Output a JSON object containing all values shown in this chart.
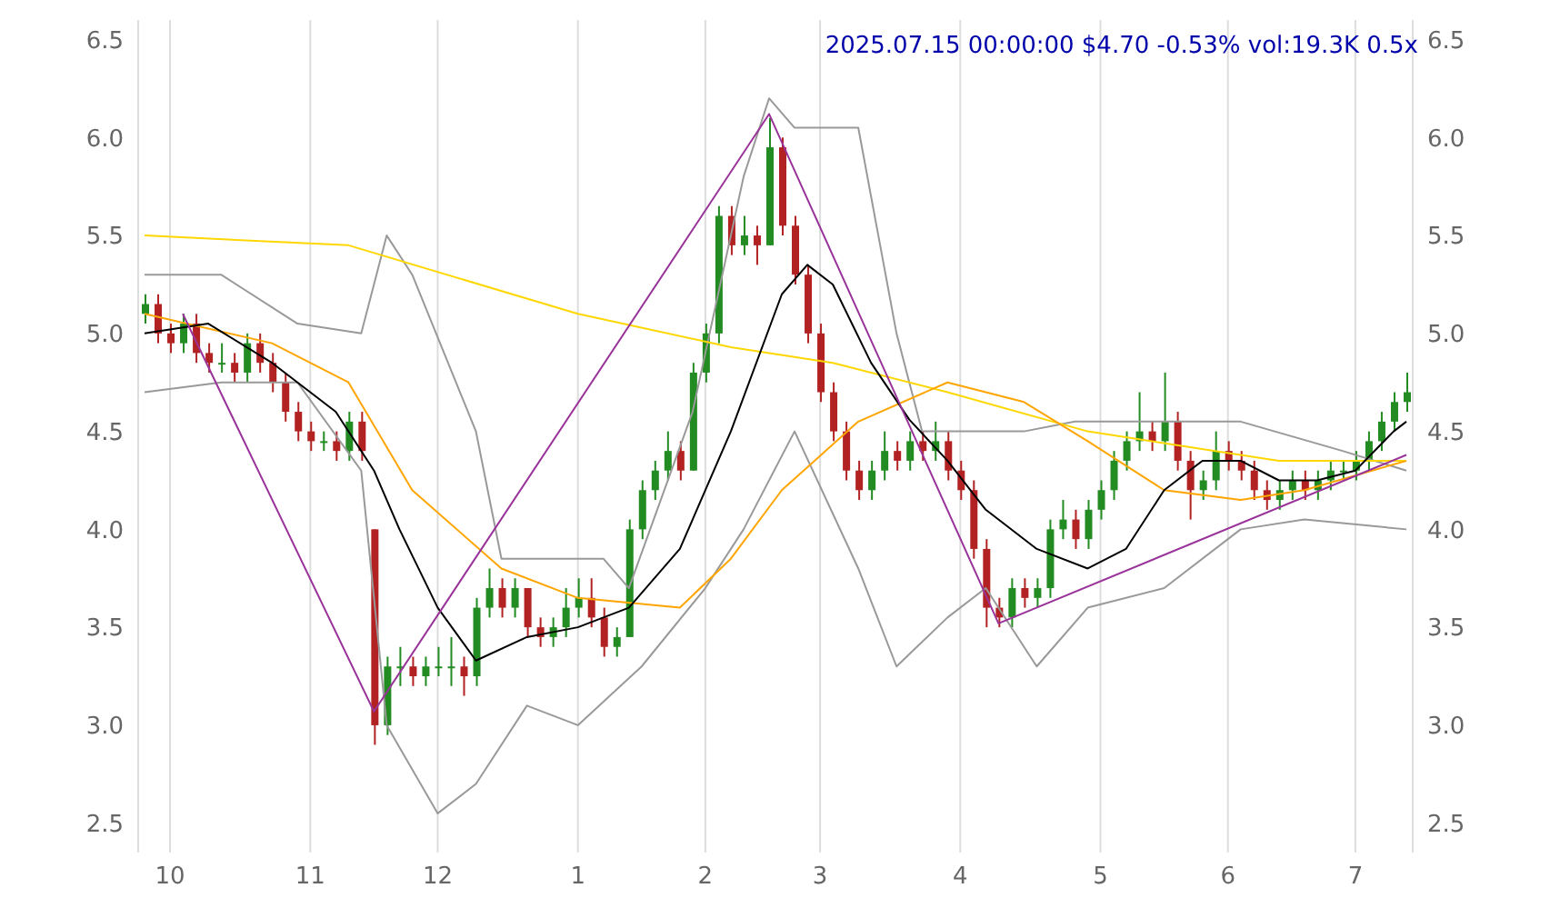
{
  "chart_data": {
    "type": "candlestick",
    "title": "2025.07.15 00:00:00 $4.70 -0.53% vol:19.3K 0.5x",
    "categories": [
      null,
      null,
      "10",
      null,
      null,
      null,
      null,
      null,
      null,
      null,
      null,
      null,
      null,
      "11",
      null,
      null,
      null,
      null,
      null,
      null,
      null,
      null,
      null,
      "12",
      null,
      null,
      null,
      null,
      null,
      null,
      null,
      null,
      null,
      null,
      "1",
      null,
      null,
      null,
      null,
      null,
      null,
      null,
      null,
      null,
      "2",
      null,
      null,
      null,
      null,
      null,
      null,
      null,
      null,
      "3",
      null,
      null,
      null,
      null,
      null,
      null,
      null,
      null,
      null,
      null,
      "4",
      null,
      null,
      null,
      null,
      null,
      null,
      null,
      null,
      null,
      null,
      "5",
      null,
      null,
      null,
      null,
      null,
      null,
      null,
      null,
      null,
      "6",
      null,
      null,
      null,
      null,
      null,
      null,
      null,
      null,
      null,
      "7",
      null,
      null,
      null,
      null
    ],
    "ylim": [
      2.35,
      6.6
    ],
    "yticks": [
      {
        "value": 2.5,
        "label": "2.5"
      },
      {
        "value": 3,
        "label": "3.0"
      },
      {
        "value": 3.5,
        "label": "3.5"
      },
      {
        "value": 4,
        "label": "4.0"
      },
      {
        "value": 4.5,
        "label": "4.5"
      },
      {
        "value": 5,
        "label": "5.0"
      },
      {
        "value": 5.5,
        "label": "5.5"
      },
      {
        "value": 6,
        "label": "6.0"
      },
      {
        "value": 6.5,
        "label": "6.5"
      }
    ],
    "y2lim": [
      2.35,
      6.6
    ],
    "y2ticks": [
      {
        "value": 2.5,
        "label": "2.5"
      },
      {
        "value": 3,
        "label": "3.0"
      },
      {
        "value": 3.5,
        "label": "3.5"
      },
      {
        "value": 4,
        "label": "4.0"
      },
      {
        "value": 4.5,
        "label": "4.5"
      },
      {
        "value": 5,
        "label": "5.0"
      },
      {
        "value": 5.5,
        "label": "5.5"
      },
      {
        "value": 6,
        "label": "6.0"
      },
      {
        "value": 6.5,
        "label": "6.5"
      }
    ],
    "grid": true,
    "series": [
      {
        "type": "line",
        "color": "#999999",
        "values": [
          5.3,
          null,
          null,
          null,
          null,
          null,
          5.3,
          null,
          null,
          null,
          null,
          null,
          5.05,
          null,
          null,
          null,
          null,
          5.0,
          null,
          5.5,
          null,
          5.3,
          null,
          null,
          null,
          null,
          4.5,
          null,
          3.85,
          null,
          null,
          null,
          null,
          null,
          null,
          null,
          3.85,
          null,
          3.7,
          null,
          null,
          null,
          null,
          4.6,
          null,
          null,
          null,
          5.8,
          null,
          6.2,
          null,
          6.05,
          null,
          null,
          null,
          null,
          6.05,
          null,
          null,
          5.0,
          null,
          4.5,
          null,
          null,
          null,
          4.5,
          null,
          null,
          null,
          4.5,
          null,
          null,
          null,
          4.55,
          null,
          null,
          null,
          null,
          null,
          null,
          null,
          null,
          null,
          null,
          null,
          null,
          4.55,
          null,
          null,
          null,
          null,
          null,
          null,
          null,
          4.4,
          null,
          null,
          null,
          null,
          4.3
        ]
      },
      {
        "type": "line",
        "color": "#999999",
        "values": [
          4.7,
          null,
          null,
          null,
          null,
          null,
          4.75,
          null,
          null,
          null,
          null,
          null,
          4.75,
          null,
          null,
          null,
          null,
          4.3,
          null,
          3.0,
          null,
          null,
          null,
          2.55,
          null,
          null,
          2.7,
          null,
          null,
          null,
          3.1,
          null,
          null,
          null,
          3.0,
          null,
          null,
          null,
          null,
          3.3,
          null,
          null,
          null,
          null,
          3.7,
          null,
          null,
          4.0,
          null,
          null,
          null,
          4.5,
          null,
          null,
          null,
          null,
          3.8,
          null,
          null,
          3.3,
          null,
          null,
          null,
          3.55,
          null,
          null,
          3.7,
          null,
          null,
          null,
          3.3,
          null,
          null,
          null,
          3.6,
          null,
          null,
          null,
          null,
          null,
          3.7,
          null,
          null,
          null,
          null,
          null,
          4.0,
          null,
          null,
          null,
          null,
          4.05,
          null,
          null,
          null,
          null,
          null,
          null,
          null,
          4.0
        ]
      },
      {
        "type": "line",
        "color": "#ffd700",
        "values": [
          5.5,
          null,
          null,
          null,
          null,
          null,
          null,
          null,
          null,
          null,
          null,
          null,
          null,
          null,
          null,
          null,
          5.45,
          null,
          null,
          null,
          null,
          null,
          null,
          null,
          null,
          null,
          null,
          null,
          null,
          null,
          null,
          null,
          null,
          null,
          5.1,
          null,
          null,
          null,
          null,
          null,
          null,
          null,
          null,
          null,
          null,
          null,
          4.93,
          null,
          null,
          null,
          null,
          null,
          null,
          null,
          4.85,
          null,
          null,
          null,
          null,
          null,
          null,
          null,
          null,
          4.7,
          null,
          null,
          null,
          null,
          null,
          null,
          null,
          null,
          null,
          null,
          4.5,
          null,
          null,
          null,
          null,
          null,
          null,
          null,
          null,
          null,
          null,
          null,
          null,
          null,
          null,
          4.35,
          null,
          null,
          null,
          null,
          null,
          null,
          null,
          null,
          null,
          4.35
        ]
      },
      {
        "type": "line",
        "color": "#ffa500",
        "values": [
          5.1,
          null,
          null,
          null,
          null,
          null,
          null,
          null,
          null,
          null,
          4.95,
          null,
          null,
          null,
          null,
          null,
          4.75,
          null,
          null,
          null,
          null,
          4.2,
          null,
          null,
          null,
          null,
          null,
          null,
          3.8,
          null,
          null,
          null,
          null,
          null,
          3.65,
          null,
          null,
          null,
          null,
          null,
          null,
          null,
          3.6,
          null,
          null,
          null,
          3.85,
          null,
          null,
          null,
          4.2,
          null,
          null,
          null,
          null,
          null,
          4.55,
          null,
          null,
          null,
          null,
          null,
          null,
          4.75,
          null,
          null,
          null,
          null,
          null,
          4.65,
          null,
          null,
          null,
          null,
          4.45,
          null,
          null,
          null,
          null,
          null,
          4.2,
          null,
          null,
          null,
          null,
          null,
          4.15,
          null,
          null,
          null,
          null,
          4.2,
          null,
          null,
          null,
          null,
          null,
          null,
          null,
          4.35
        ]
      },
      {
        "type": "line",
        "color": "#000000",
        "values": [
          5.0,
          null,
          null,
          null,
          null,
          5.05,
          null,
          null,
          null,
          null,
          4.85,
          null,
          null,
          null,
          null,
          4.6,
          null,
          null,
          4.3,
          null,
          4.0,
          null,
          null,
          3.6,
          null,
          null,
          3.33,
          null,
          null,
          null,
          3.45,
          null,
          null,
          null,
          3.5,
          null,
          null,
          null,
          3.6,
          null,
          null,
          null,
          3.9,
          null,
          null,
          null,
          4.5,
          null,
          null,
          null,
          5.2,
          null,
          5.35,
          null,
          5.25,
          null,
          null,
          4.85,
          null,
          null,
          4.56,
          null,
          null,
          4.35,
          null,
          null,
          4.1,
          null,
          null,
          null,
          3.9,
          null,
          null,
          null,
          3.8,
          null,
          null,
          3.9,
          null,
          null,
          4.2,
          null,
          null,
          4.35,
          null,
          null,
          4.35,
          null,
          null,
          4.25,
          null,
          null,
          4.25,
          null,
          null,
          4.3,
          null,
          null,
          4.5,
          4.55
        ]
      },
      {
        "type": "line",
        "color": "#993399",
        "values": [
          null,
          null,
          null,
          5.1,
          null,
          null,
          null,
          null,
          null,
          null,
          null,
          null,
          null,
          null,
          null,
          null,
          null,
          null,
          3.07,
          null,
          null,
          null,
          null,
          null,
          null,
          null,
          null,
          null,
          null,
          null,
          null,
          null,
          null,
          null,
          null,
          null,
          null,
          null,
          null,
          null,
          null,
          null,
          null,
          null,
          null,
          null,
          null,
          null,
          null,
          6.12,
          null,
          null,
          null,
          null,
          null,
          null,
          null,
          null,
          null,
          null,
          null,
          null,
          null,
          null,
          null,
          null,
          null,
          3.52,
          null,
          null,
          null,
          null,
          null,
          null,
          null,
          null,
          null,
          null,
          null,
          null,
          null,
          null,
          null,
          null,
          null,
          null,
          null,
          null,
          null,
          null,
          null,
          null,
          null,
          null,
          null,
          null,
          null,
          null,
          null,
          4.38
        ]
      },
      {
        "ohlc": [
          [
            5.1,
            5.2,
            5.05,
            5.15
          ],
          [
            5.15,
            5.2,
            4.95,
            5.0
          ],
          [
            5.0,
            5.05,
            4.9,
            4.95
          ],
          [
            4.95,
            5.1,
            4.9,
            5.05
          ],
          [
            5.05,
            5.1,
            4.85,
            4.9
          ],
          [
            4.9,
            4.95,
            4.8,
            4.85
          ],
          [
            4.85,
            4.95,
            4.8,
            4.85
          ],
          [
            4.85,
            4.9,
            4.75,
            4.8
          ],
          [
            4.8,
            5.0,
            4.75,
            4.95
          ],
          [
            4.95,
            5.0,
            4.8,
            4.85
          ],
          [
            4.85,
            4.9,
            4.7,
            4.75
          ],
          [
            4.75,
            4.8,
            4.55,
            4.6
          ],
          [
            4.6,
            4.65,
            4.45,
            4.5
          ],
          [
            4.5,
            4.55,
            4.4,
            4.45
          ],
          [
            4.45,
            4.5,
            4.4,
            4.45
          ],
          [
            4.45,
            4.5,
            4.35,
            4.4
          ],
          [
            4.4,
            4.6,
            4.35,
            4.55
          ],
          [
            4.55,
            4.6,
            4.35,
            4.4
          ],
          [
            4.0,
            4.0,
            2.9,
            3.0
          ],
          [
            3.0,
            3.35,
            2.95,
            3.3
          ],
          [
            3.3,
            3.4,
            3.2,
            3.3
          ],
          [
            3.3,
            3.35,
            3.2,
            3.25
          ],
          [
            3.25,
            3.35,
            3.2,
            3.3
          ],
          [
            3.3,
            3.4,
            3.25,
            3.3
          ],
          [
            3.3,
            3.45,
            3.2,
            3.3
          ],
          [
            3.3,
            3.35,
            3.15,
            3.25
          ],
          [
            3.25,
            3.65,
            3.2,
            3.6
          ],
          [
            3.6,
            3.8,
            3.55,
            3.7
          ],
          [
            3.7,
            3.75,
            3.55,
            3.6
          ],
          [
            3.6,
            3.75,
            3.55,
            3.7
          ],
          [
            3.7,
            3.7,
            3.45,
            3.5
          ],
          [
            3.5,
            3.55,
            3.4,
            3.45
          ],
          [
            3.45,
            3.55,
            3.4,
            3.5
          ],
          [
            3.5,
            3.7,
            3.45,
            3.6
          ],
          [
            3.6,
            3.75,
            3.55,
            3.65
          ],
          [
            3.65,
            3.75,
            3.5,
            3.55
          ],
          [
            3.55,
            3.6,
            3.35,
            3.4
          ],
          [
            3.4,
            3.5,
            3.35,
            3.45
          ],
          [
            3.45,
            4.05,
            3.45,
            4.0
          ],
          [
            4.0,
            4.25,
            3.95,
            4.2
          ],
          [
            4.2,
            4.35,
            4.15,
            4.3
          ],
          [
            4.3,
            4.5,
            4.25,
            4.4
          ],
          [
            4.4,
            4.45,
            4.25,
            4.3
          ],
          [
            4.3,
            4.85,
            4.3,
            4.8
          ],
          [
            4.8,
            5.05,
            4.75,
            5.0
          ],
          [
            5.0,
            5.65,
            4.95,
            5.6
          ],
          [
            5.6,
            5.65,
            5.4,
            5.45
          ],
          [
            5.45,
            5.6,
            5.4,
            5.5
          ],
          [
            5.5,
            5.55,
            5.35,
            5.45
          ],
          [
            5.45,
            6.1,
            5.45,
            5.95
          ],
          [
            5.95,
            6.0,
            5.5,
            5.55
          ],
          [
            5.55,
            5.6,
            5.25,
            5.3
          ],
          [
            5.3,
            5.35,
            4.95,
            5.0
          ],
          [
            5.0,
            5.05,
            4.65,
            4.7
          ],
          [
            4.7,
            4.75,
            4.45,
            4.5
          ],
          [
            4.5,
            4.55,
            4.25,
            4.3
          ],
          [
            4.3,
            4.35,
            4.15,
            4.2
          ],
          [
            4.2,
            4.35,
            4.15,
            4.3
          ],
          [
            4.3,
            4.5,
            4.25,
            4.4
          ],
          [
            4.4,
            4.45,
            4.3,
            4.35
          ],
          [
            4.35,
            4.5,
            4.3,
            4.45
          ],
          [
            4.45,
            4.5,
            4.35,
            4.4
          ],
          [
            4.4,
            4.55,
            4.35,
            4.45
          ],
          [
            4.45,
            4.5,
            4.25,
            4.3
          ],
          [
            4.3,
            4.35,
            4.15,
            4.2
          ],
          [
            4.2,
            4.25,
            3.85,
            3.9
          ],
          [
            3.9,
            3.95,
            3.5,
            3.6
          ],
          [
            3.6,
            3.65,
            3.5,
            3.55
          ],
          [
            3.55,
            3.75,
            3.5,
            3.7
          ],
          [
            3.7,
            3.75,
            3.6,
            3.65
          ],
          [
            3.65,
            3.75,
            3.6,
            3.7
          ],
          [
            3.7,
            4.05,
            3.65,
            4.0
          ],
          [
            4.0,
            4.15,
            3.95,
            4.05
          ],
          [
            4.05,
            4.1,
            3.9,
            3.95
          ],
          [
            3.95,
            4.15,
            3.9,
            4.1
          ],
          [
            4.1,
            4.25,
            4.05,
            4.2
          ],
          [
            4.2,
            4.4,
            4.15,
            4.35
          ],
          [
            4.35,
            4.5,
            4.3,
            4.45
          ],
          [
            4.45,
            4.7,
            4.4,
            4.5
          ],
          [
            4.5,
            4.55,
            4.4,
            4.45
          ],
          [
            4.45,
            4.8,
            4.4,
            4.55
          ],
          [
            4.55,
            4.6,
            4.3,
            4.35
          ],
          [
            4.35,
            4.4,
            4.05,
            4.2
          ],
          [
            4.2,
            4.3,
            4.15,
            4.25
          ],
          [
            4.25,
            4.5,
            4.2,
            4.4
          ],
          [
            4.4,
            4.45,
            4.3,
            4.35
          ],
          [
            4.35,
            4.4,
            4.25,
            4.3
          ],
          [
            4.3,
            4.35,
            4.15,
            4.2
          ],
          [
            4.2,
            4.25,
            4.1,
            4.15
          ],
          [
            4.15,
            4.25,
            4.1,
            4.2
          ],
          [
            4.2,
            4.3,
            4.15,
            4.25
          ],
          [
            4.25,
            4.3,
            4.15,
            4.2
          ],
          [
            4.2,
            4.3,
            4.15,
            4.25
          ],
          [
            4.25,
            4.35,
            4.2,
            4.3
          ],
          [
            4.3,
            4.35,
            4.25,
            4.3
          ],
          [
            4.3,
            4.4,
            4.25,
            4.35
          ],
          [
            4.35,
            4.5,
            4.3,
            4.45
          ],
          [
            4.45,
            4.6,
            4.4,
            4.55
          ],
          [
            4.55,
            4.7,
            4.5,
            4.65
          ],
          [
            4.65,
            4.8,
            4.6,
            4.7
          ]
        ]
      }
    ]
  }
}
